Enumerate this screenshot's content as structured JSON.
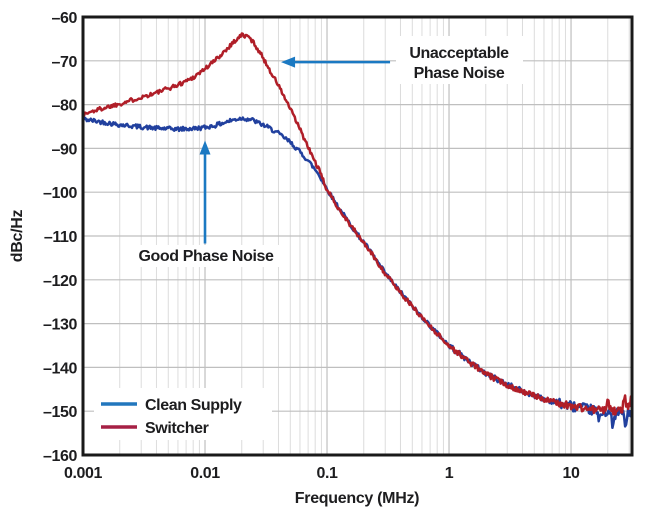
{
  "chart_data": {
    "type": "line",
    "title": "",
    "xlabel": "Frequency (MHz)",
    "ylabel": "dBc/Hz",
    "x_scale": "log",
    "xlim": [
      0.001,
      31.6
    ],
    "ylim": [
      -160,
      -60
    ],
    "grid": {
      "major": true,
      "minor_x": true
    },
    "x_ticks": [
      {
        "value": 0.001,
        "label": "0.001"
      },
      {
        "value": 0.01,
        "label": "0.01"
      },
      {
        "value": 0.1,
        "label": "0.1"
      },
      {
        "value": 1,
        "label": "1"
      },
      {
        "value": 10,
        "label": "10"
      }
    ],
    "y_ticks": [
      {
        "value": -60,
        "label": "–60"
      },
      {
        "value": -70,
        "label": "–70"
      },
      {
        "value": -80,
        "label": "–80"
      },
      {
        "value": -90,
        "label": "–90"
      },
      {
        "value": -100,
        "label": "–100"
      },
      {
        "value": -110,
        "label": "–110"
      },
      {
        "value": -120,
        "label": "–120"
      },
      {
        "value": -130,
        "label": "–130"
      },
      {
        "value": -140,
        "label": "–140"
      },
      {
        "value": -150,
        "label": "–150"
      },
      {
        "value": -160,
        "label": "–160"
      }
    ],
    "legend": {
      "position": "lower-left",
      "items": [
        {
          "label": "Clean Supply",
          "color": "#2277bd"
        },
        {
          "label": "Switcher",
          "color": "#a62045"
        }
      ]
    },
    "series": [
      {
        "name": "Clean Supply",
        "color": "#21409e",
        "points": [
          [
            0.001,
            -83.3
          ],
          [
            0.0013,
            -83.8
          ],
          [
            0.0017,
            -84.3
          ],
          [
            0.002,
            -84.6
          ],
          [
            0.003,
            -85.1
          ],
          [
            0.004,
            -85.4
          ],
          [
            0.005,
            -85.5
          ],
          [
            0.006,
            -85.6
          ],
          [
            0.008,
            -85.5
          ],
          [
            0.01,
            -85.2
          ],
          [
            0.012,
            -84.8
          ],
          [
            0.014,
            -84.2
          ],
          [
            0.017,
            -83.5
          ],
          [
            0.02,
            -83.1
          ],
          [
            0.024,
            -83.4
          ],
          [
            0.028,
            -84.3
          ],
          [
            0.033,
            -85.2
          ],
          [
            0.04,
            -86.6
          ],
          [
            0.05,
            -88.6
          ],
          [
            0.06,
            -90.8
          ],
          [
            0.07,
            -92.8
          ],
          [
            0.085,
            -95.8
          ],
          [
            0.1,
            -99.3
          ],
          [
            0.13,
            -104.3
          ],
          [
            0.17,
            -108.9
          ],
          [
            0.22,
            -113
          ],
          [
            0.3,
            -118.5
          ],
          [
            0.4,
            -122.8
          ],
          [
            0.5,
            -126
          ],
          [
            0.7,
            -130.5
          ],
          [
            1,
            -135
          ],
          [
            1.4,
            -138.2
          ],
          [
            2,
            -141.4
          ],
          [
            3,
            -143.9
          ],
          [
            4,
            -145.4
          ],
          [
            5,
            -146.4
          ],
          [
            7,
            -147.7
          ],
          [
            10,
            -148.8
          ],
          [
            14,
            -149.6
          ],
          [
            20,
            -150.1
          ],
          [
            25,
            -150.3
          ],
          [
            31.6,
            -150.2
          ]
        ],
        "noise_spikes": [
          {
            "f": 17,
            "a": -2.5
          },
          {
            "f": 22,
            "a": -3.6
          },
          {
            "f": 28,
            "a": -3.0
          }
        ]
      },
      {
        "name": "Switcher",
        "color": "#b01e28",
        "points": [
          [
            0.001,
            -82.3
          ],
          [
            0.0013,
            -81.2
          ],
          [
            0.0017,
            -80.3
          ],
          [
            0.002,
            -79.8
          ],
          [
            0.003,
            -78.3
          ],
          [
            0.004,
            -77.3
          ],
          [
            0.005,
            -76.3
          ],
          [
            0.006,
            -75.5
          ],
          [
            0.008,
            -73.8
          ],
          [
            0.01,
            -71.8
          ],
          [
            0.012,
            -70
          ],
          [
            0.014,
            -68.2
          ],
          [
            0.017,
            -65.8
          ],
          [
            0.02,
            -64.1
          ],
          [
            0.023,
            -64.6
          ],
          [
            0.026,
            -66.5
          ],
          [
            0.03,
            -69.4
          ],
          [
            0.035,
            -72.8
          ],
          [
            0.04,
            -75.6
          ],
          [
            0.05,
            -81
          ],
          [
            0.06,
            -85.6
          ],
          [
            0.07,
            -89.8
          ],
          [
            0.085,
            -94.6
          ],
          [
            0.1,
            -99.5
          ],
          [
            0.13,
            -104.5
          ],
          [
            0.17,
            -109
          ],
          [
            0.22,
            -113.1
          ],
          [
            0.3,
            -118.6
          ],
          [
            0.4,
            -122.9
          ],
          [
            0.5,
            -126.1
          ],
          [
            0.7,
            -130.6
          ],
          [
            1,
            -135.1
          ],
          [
            1.4,
            -138.3
          ],
          [
            2,
            -141.5
          ],
          [
            3,
            -144
          ],
          [
            4,
            -145.5
          ],
          [
            5,
            -146.5
          ],
          [
            7,
            -147.8
          ],
          [
            10,
            -148.8
          ],
          [
            14,
            -149.5
          ],
          [
            20,
            -149.9
          ],
          [
            25,
            -150
          ],
          [
            31.6,
            -149.3
          ]
        ],
        "noise_spikes": [
          {
            "f": 20,
            "a": 2.6
          },
          {
            "f": 27.5,
            "a": 3.0
          },
          {
            "f": 31,
            "a": 2.0
          }
        ]
      }
    ],
    "annotations": [
      {
        "id": "unacceptable-phase-noise",
        "lines": [
          "Unacceptable",
          "Phase Noise"
        ],
        "arrow_color": "#1b79c2",
        "arrow": {
          "dir": "left",
          "tip_f": 0.042,
          "tip_db": -70.3
        }
      },
      {
        "id": "good-phase-noise",
        "lines": [
          "Good Phase Noise"
        ],
        "arrow_color": "#1b79c2",
        "arrow": {
          "dir": "up",
          "tip_f": 0.01,
          "tip_db": -88.2
        }
      }
    ]
  }
}
